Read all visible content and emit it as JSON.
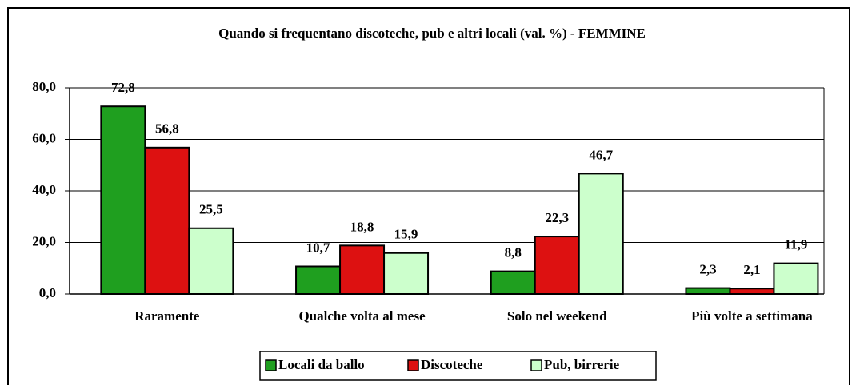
{
  "chart_data": {
    "type": "bar",
    "title": "Quando si frequentano discoteche, pub e altri locali (val. %) - FEMMINE",
    "categories": [
      "Raramente",
      "Qualche volta al mese",
      "Solo nel weekend",
      "Più volte a settimana"
    ],
    "series": [
      {
        "name": "Locali da ballo",
        "color": "#1f9f1f",
        "values": [
          72.8,
          10.7,
          8.8,
          2.3
        ],
        "value_labels": [
          "72,8",
          "10,7",
          "8,8",
          "2,3"
        ]
      },
      {
        "name": "Discoteche",
        "color": "#dd1111",
        "values": [
          56.8,
          18.8,
          22.3,
          2.1
        ],
        "value_labels": [
          "56,8",
          "18,8",
          "22,3",
          "2,1"
        ]
      },
      {
        "name": "Pub, birrerie",
        "color": "#ccffcc",
        "values": [
          25.5,
          15.9,
          46.7,
          11.9
        ],
        "value_labels": [
          "25,5",
          "15,9",
          "46,7",
          "11,9"
        ]
      }
    ],
    "ylim": [
      0,
      80
    ],
    "yticks": [
      {
        "value": 0,
        "label": "0,0"
      },
      {
        "value": 20,
        "label": "20,0"
      },
      {
        "value": 40,
        "label": "40,0"
      },
      {
        "value": 60,
        "label": "60,0"
      },
      {
        "value": 80,
        "label": "80,0"
      }
    ],
    "grid": true,
    "legend": "bottom"
  }
}
